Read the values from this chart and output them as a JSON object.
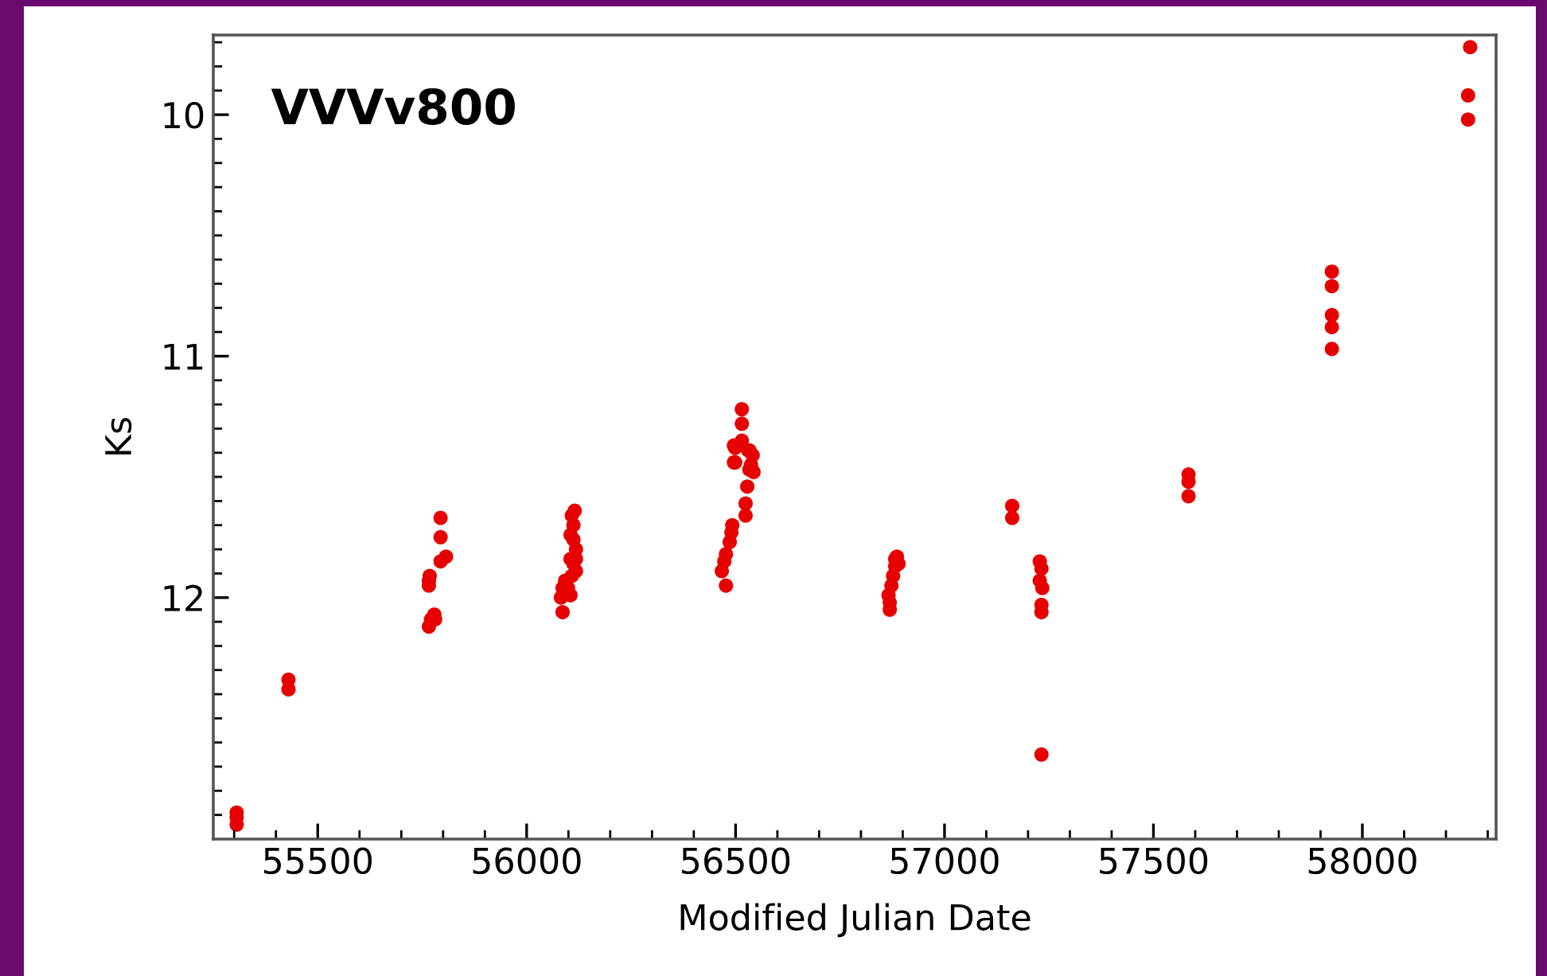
{
  "chart_data": {
    "type": "scatter",
    "xlabel": "Modified Julian Date",
    "ylabel": "Ks",
    "annotations": [
      "VVVv800"
    ],
    "marker": "circle",
    "grid": false,
    "legend": false,
    "xlim": [
      55250,
      58320
    ],
    "ylim": [
      13.0,
      9.67
    ],
    "xticks": [
      {
        "value": 55300,
        "label": null
      },
      {
        "value": 55400,
        "label": null
      },
      55500,
      {
        "value": 55600,
        "label": null
      },
      {
        "value": 55700,
        "label": null
      },
      {
        "value": 55800,
        "label": null
      },
      {
        "value": 55900,
        "label": null
      },
      56000,
      {
        "value": 56100,
        "label": null
      },
      {
        "value": 56200,
        "label": null
      },
      {
        "value": 56300,
        "label": null
      },
      {
        "value": 56400,
        "label": null
      },
      56500,
      {
        "value": 56600,
        "label": null
      },
      {
        "value": 56700,
        "label": null
      },
      {
        "value": 56800,
        "label": null
      },
      {
        "value": 56900,
        "label": null
      },
      57000,
      {
        "value": 57100,
        "label": null
      },
      {
        "value": 57200,
        "label": null
      },
      {
        "value": 57300,
        "label": null
      },
      {
        "value": 57400,
        "label": null
      },
      57500,
      {
        "value": 57600,
        "label": null
      },
      {
        "value": 57700,
        "label": null
      },
      {
        "value": 57800,
        "label": null
      },
      {
        "value": 57900,
        "label": null
      },
      58000,
      {
        "value": 58100,
        "label": null
      },
      {
        "value": 58200,
        "label": null
      },
      {
        "value": 58300,
        "label": null
      }
    ],
    "yticks": [
      {
        "value": 9.7,
        "label": null
      },
      {
        "value": 9.8,
        "label": null
      },
      {
        "value": 9.9,
        "label": null
      },
      10,
      {
        "value": 10.1,
        "label": null
      },
      {
        "value": 10.2,
        "label": null
      },
      {
        "value": 10.3,
        "label": null
      },
      {
        "value": 10.4,
        "label": null
      },
      {
        "value": 10.5,
        "label": null
      },
      {
        "value": 10.6,
        "label": null
      },
      {
        "value": 10.7,
        "label": null
      },
      {
        "value": 10.8,
        "label": null
      },
      {
        "value": 10.9,
        "label": null
      },
      11,
      {
        "value": 11.1,
        "label": null
      },
      {
        "value": 11.2,
        "label": null
      },
      {
        "value": 11.3,
        "label": null
      },
      {
        "value": 11.4,
        "label": null
      },
      {
        "value": 11.5,
        "label": null
      },
      {
        "value": 11.6,
        "label": null
      },
      {
        "value": 11.7,
        "label": null
      },
      {
        "value": 11.8,
        "label": null
      },
      {
        "value": 11.9,
        "label": null
      },
      12,
      {
        "value": 12.1,
        "label": null
      },
      {
        "value": 12.2,
        "label": null
      },
      {
        "value": 12.3,
        "label": null
      },
      {
        "value": 12.4,
        "label": null
      },
      {
        "value": 12.5,
        "label": null
      },
      {
        "value": 12.6,
        "label": null
      },
      {
        "value": 12.7,
        "label": null
      },
      {
        "value": 12.8,
        "label": null
      },
      {
        "value": 12.9,
        "label": null
      }
    ],
    "series": [
      {
        "color": "#e60000",
        "x": [
          55306,
          55306,
          55306,
          55430,
          55430,
          55766,
          55766,
          55768,
          55766,
          55771,
          55779,
          55781,
          55794,
          55794,
          55794,
          55807,
          56086,
          56082,
          56086,
          56092,
          56105,
          56099,
          56108,
          56112,
          56118,
          56105,
          56118,
          56105,
          56112,
          56115,
          56108,
          56118,
          56112,
          56477,
          56467,
          56473,
          56477,
          56486,
          56490,
          56492,
          56496,
          56499,
          56524,
          56524,
          56528,
          56533,
          56541,
          56530,
          56515,
          56515,
          56515,
          56496,
          56533,
          56499,
          56537,
          56543,
          56869,
          56869,
          56873,
          56877,
          56882,
          56886,
          56890,
          56882,
          56866,
          57162,
          57162,
          57228,
          57232,
          57228,
          57234,
          57232,
          57232,
          57232,
          57584,
          57584,
          57584,
          57927,
          57927,
          57927,
          57927,
          57927,
          58258,
          58253,
          58253
        ],
        "values": [
          12.89,
          12.91,
          12.94,
          12.34,
          12.38,
          11.93,
          11.95,
          11.91,
          12.12,
          12.09,
          12.07,
          12.09,
          11.67,
          11.75,
          11.85,
          11.83,
          12.06,
          12.0,
          11.96,
          11.93,
          11.99,
          11.96,
          11.91,
          11.86,
          11.84,
          11.84,
          11.8,
          11.74,
          11.7,
          11.64,
          11.66,
          11.89,
          11.76,
          11.95,
          11.89,
          11.85,
          11.82,
          11.77,
          11.73,
          11.7,
          11.44,
          11.38,
          11.66,
          11.61,
          11.54,
          11.47,
          11.41,
          11.39,
          11.22,
          11.28,
          11.35,
          11.37,
          11.39,
          11.44,
          11.45,
          11.48,
          12.05,
          12.02,
          11.95,
          11.91,
          11.87,
          11.83,
          11.86,
          11.84,
          11.99,
          11.62,
          11.67,
          11.85,
          11.88,
          11.93,
          11.96,
          12.03,
          12.06,
          12.65,
          11.49,
          11.52,
          11.58,
          10.65,
          10.71,
          10.83,
          10.88,
          10.97,
          9.72,
          9.92,
          10.02
        ]
      }
    ]
  }
}
